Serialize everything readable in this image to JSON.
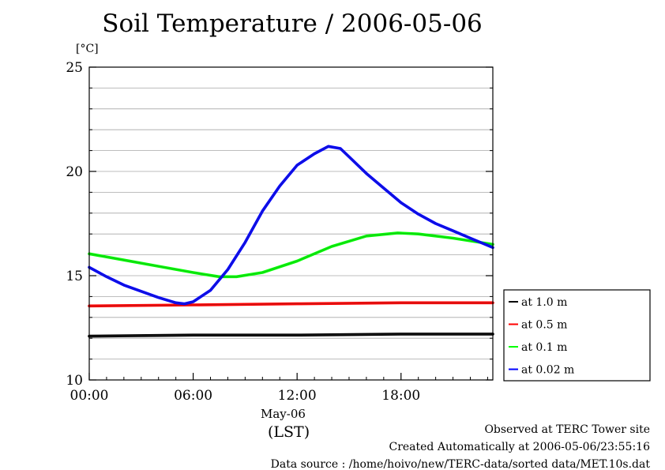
{
  "chart_data": {
    "type": "line",
    "title": "Soil Temperature / 2006-05-06",
    "ylabel": "[°C]",
    "xlabel": "(LST)",
    "x_date_label": "May-06",
    "x_ticks": [
      "00:00",
      "06:00",
      "12:00",
      "18:00"
    ],
    "y_ticks": [
      10,
      15,
      20,
      25
    ],
    "xlim": [
      0,
      23.3
    ],
    "ylim": [
      10,
      25
    ],
    "grid": true,
    "legend_position": "bottom-right, outside plot",
    "series": [
      {
        "name": "at 1.0 m",
        "color": "#000000",
        "x": [
          0,
          6,
          12,
          18,
          23.3
        ],
        "y": [
          12.1,
          12.15,
          12.15,
          12.2,
          12.2
        ]
      },
      {
        "name": "at 0.5 m",
        "color": "#ff0000",
        "x": [
          0,
          6,
          12,
          18,
          23.3
        ],
        "y": [
          13.55,
          13.6,
          13.65,
          13.7,
          13.7
        ]
      },
      {
        "name": "at 0.1 m",
        "color": "#00ff00",
        "x": [
          0,
          2,
          4,
          6,
          7.5,
          8.5,
          10,
          12,
          14,
          16,
          17.8,
          19,
          21,
          23.3
        ],
        "y": [
          16.05,
          15.75,
          15.45,
          15.15,
          14.95,
          14.95,
          15.15,
          15.7,
          16.4,
          16.9,
          17.05,
          17,
          16.8,
          16.5
        ]
      },
      {
        "name": "at 0.02 m",
        "color": "#0000ff",
        "x": [
          0,
          1,
          2,
          3,
          4,
          5,
          5.5,
          6,
          7,
          8,
          9,
          10,
          11,
          12,
          13,
          13.8,
          14.5,
          15,
          16,
          17,
          18,
          19,
          20,
          21,
          22,
          23.3
        ],
        "y": [
          15.4,
          14.95,
          14.55,
          14.25,
          13.95,
          13.7,
          13.65,
          13.75,
          14.3,
          15.3,
          16.6,
          18.1,
          19.3,
          20.3,
          20.85,
          21.2,
          21.1,
          20.7,
          19.9,
          19.2,
          18.5,
          17.95,
          17.5,
          17.15,
          16.8,
          16.35
        ]
      }
    ]
  },
  "footer": {
    "line1": "Observed at TERC Tower site",
    "line2": "Created Automatically at 2006-05-06/23:55:16",
    "line3": "Data source : /home/hoivo/new/TERC-data/sorted  data/MET.10s.dat"
  }
}
